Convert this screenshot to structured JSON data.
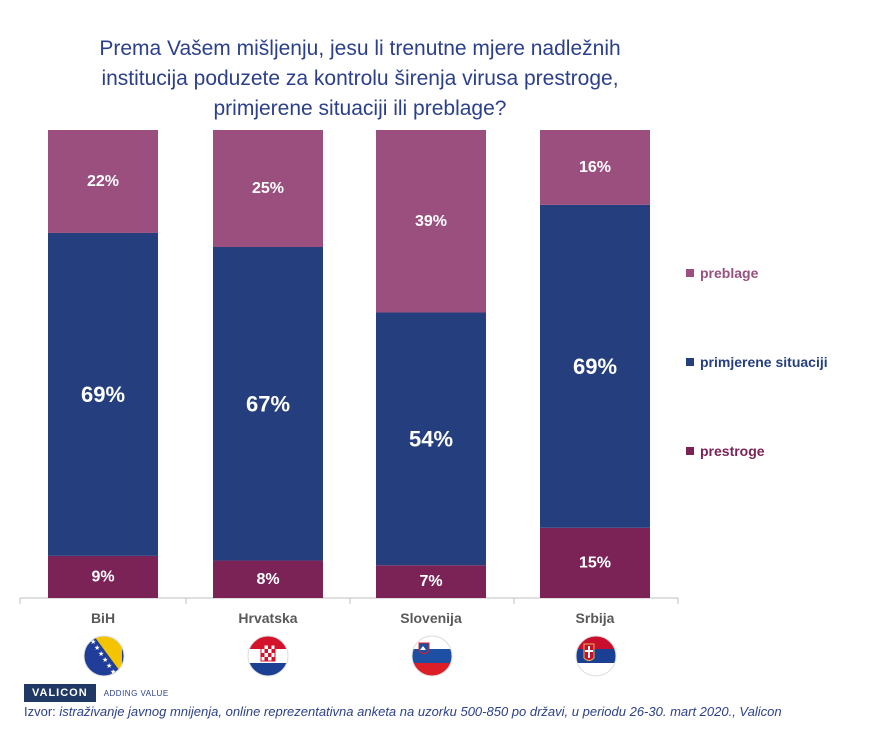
{
  "title_lines": [
    "Prema Vašem mišljenju, jesu li trenutne mjere nadležnih",
    "institucija poduzete za kontrolu širenja virusa prestroge,",
    "primjerene situaciji ili preblage?"
  ],
  "chart_data": {
    "type": "bar",
    "stacked": true,
    "title": "Prema Vašem mišljenju, jesu li trenutne mjere nadležnih institucija poduzete za kontrolu širenja virusa prestroge, primjerene situaciji ili preblage?",
    "categories": [
      "BiH",
      "Hrvatska",
      "Slovenija",
      "Srbija"
    ],
    "series": [
      {
        "name": "prestroge",
        "values": [
          9,
          8,
          7,
          15
        ],
        "labels": [
          "9%",
          "8%",
          "7%",
          "15%"
        ],
        "color": "#7b2257"
      },
      {
        "name": "primjerene situaciji",
        "values": [
          69,
          67,
          54,
          69
        ],
        "labels": [
          "69%",
          "67%",
          "54%",
          "69%"
        ],
        "color": "#253f7e"
      },
      {
        "name": "preblage",
        "values": [
          22,
          25,
          39,
          16
        ],
        "labels": [
          "22%",
          "25%",
          "39%",
          "16%"
        ],
        "color": "#9a4f7e"
      }
    ],
    "ylim": [
      0,
      100
    ],
    "grid": false,
    "legend_position": "right",
    "legend_order": [
      "preblage",
      "primjerene situaciji",
      "prestroge"
    ]
  },
  "flags": [
    "bih-flag-icon",
    "croatia-flag-icon",
    "slovenia-flag-icon",
    "serbia-flag-icon"
  ],
  "logo": {
    "name": "VALICON",
    "tagline": "ADDING VALUE"
  },
  "source": {
    "prefix": "Izvor: ",
    "text": "istraživanje javnog mnijenja, online reprezentativna anketa na uzorku 500-850 po državi, u periodu 26-30. mart 2020.,  Valicon"
  }
}
